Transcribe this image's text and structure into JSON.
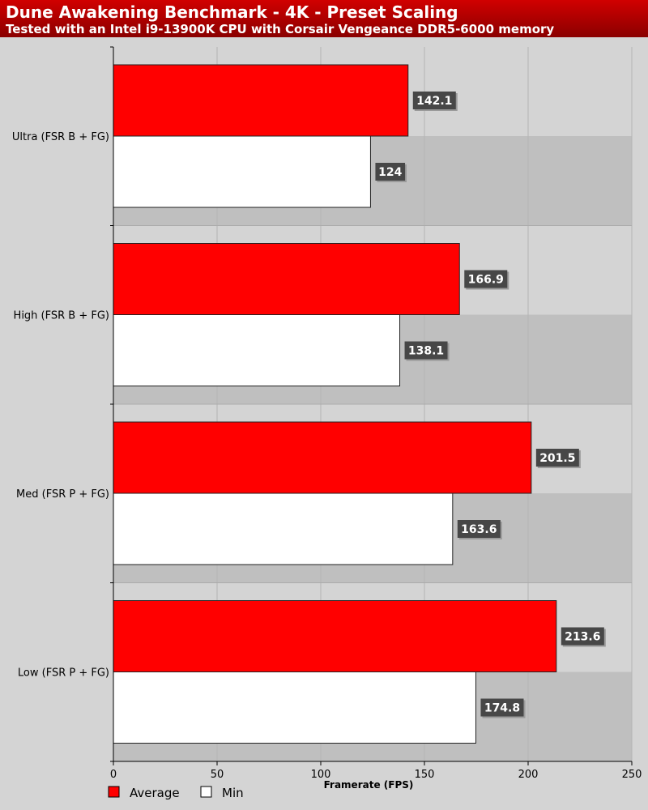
{
  "chart_data": {
    "type": "bar",
    "orientation": "horizontal",
    "title": "Dune Awakening Benchmark - 4K - Preset Scaling",
    "subtitle": "Tested with an Intel i9-13900K CPU with Corsair Vengeance DDR5-6000 memory",
    "categories": [
      "Ultra (FSR B + FG)",
      "High (FSR B + FG)",
      "Med (FSR P + FG)",
      "Low (FSR P + FG)"
    ],
    "series": [
      {
        "name": "Average",
        "color": "#ff0000",
        "values": [
          142.1,
          166.9,
          201.5,
          213.6
        ]
      },
      {
        "name": "Min",
        "color": "#ffffff",
        "values": [
          124,
          138.1,
          163.6,
          174.8
        ]
      }
    ],
    "xlabel": "Framerate (FPS)",
    "ylabel": "",
    "xlim": [
      0,
      250
    ],
    "xticks": [
      0,
      50,
      100,
      150,
      200,
      250
    ],
    "grid": true,
    "legend": "bottom-left"
  }
}
